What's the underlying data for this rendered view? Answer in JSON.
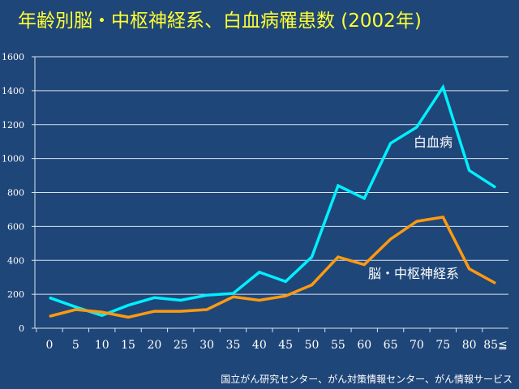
{
  "chart_data": {
    "type": "line",
    "title": "年齢別脳・中枢神経系、白血病罹患数 (2002年)",
    "xlabel": "",
    "ylabel": "",
    "x": [
      "0",
      "5",
      "10",
      "15",
      "20",
      "25",
      "30",
      "35",
      "40",
      "45",
      "50",
      "55",
      "60",
      "65",
      "70",
      "75",
      "80",
      "85≦"
    ],
    "ylim": [
      0,
      1600
    ],
    "yticks": [
      0,
      200,
      400,
      600,
      800,
      1000,
      1200,
      1400,
      1600
    ],
    "grid": true,
    "series": [
      {
        "name": "白血病",
        "color": "#00f0ff",
        "values": [
          180,
          125,
          75,
          135,
          180,
          165,
          195,
          205,
          330,
          275,
          420,
          840,
          765,
          1090,
          1185,
          1420,
          930,
          830
        ]
      },
      {
        "name": "脳・中枢神経系",
        "color": "#ff9a10",
        "values": [
          70,
          110,
          95,
          65,
          100,
          100,
          110,
          185,
          165,
          190,
          255,
          420,
          375,
          525,
          630,
          655,
          350,
          265
        ]
      }
    ],
    "source": "国立がん研究センター、がん対策情報センター、がん情報サービス"
  }
}
